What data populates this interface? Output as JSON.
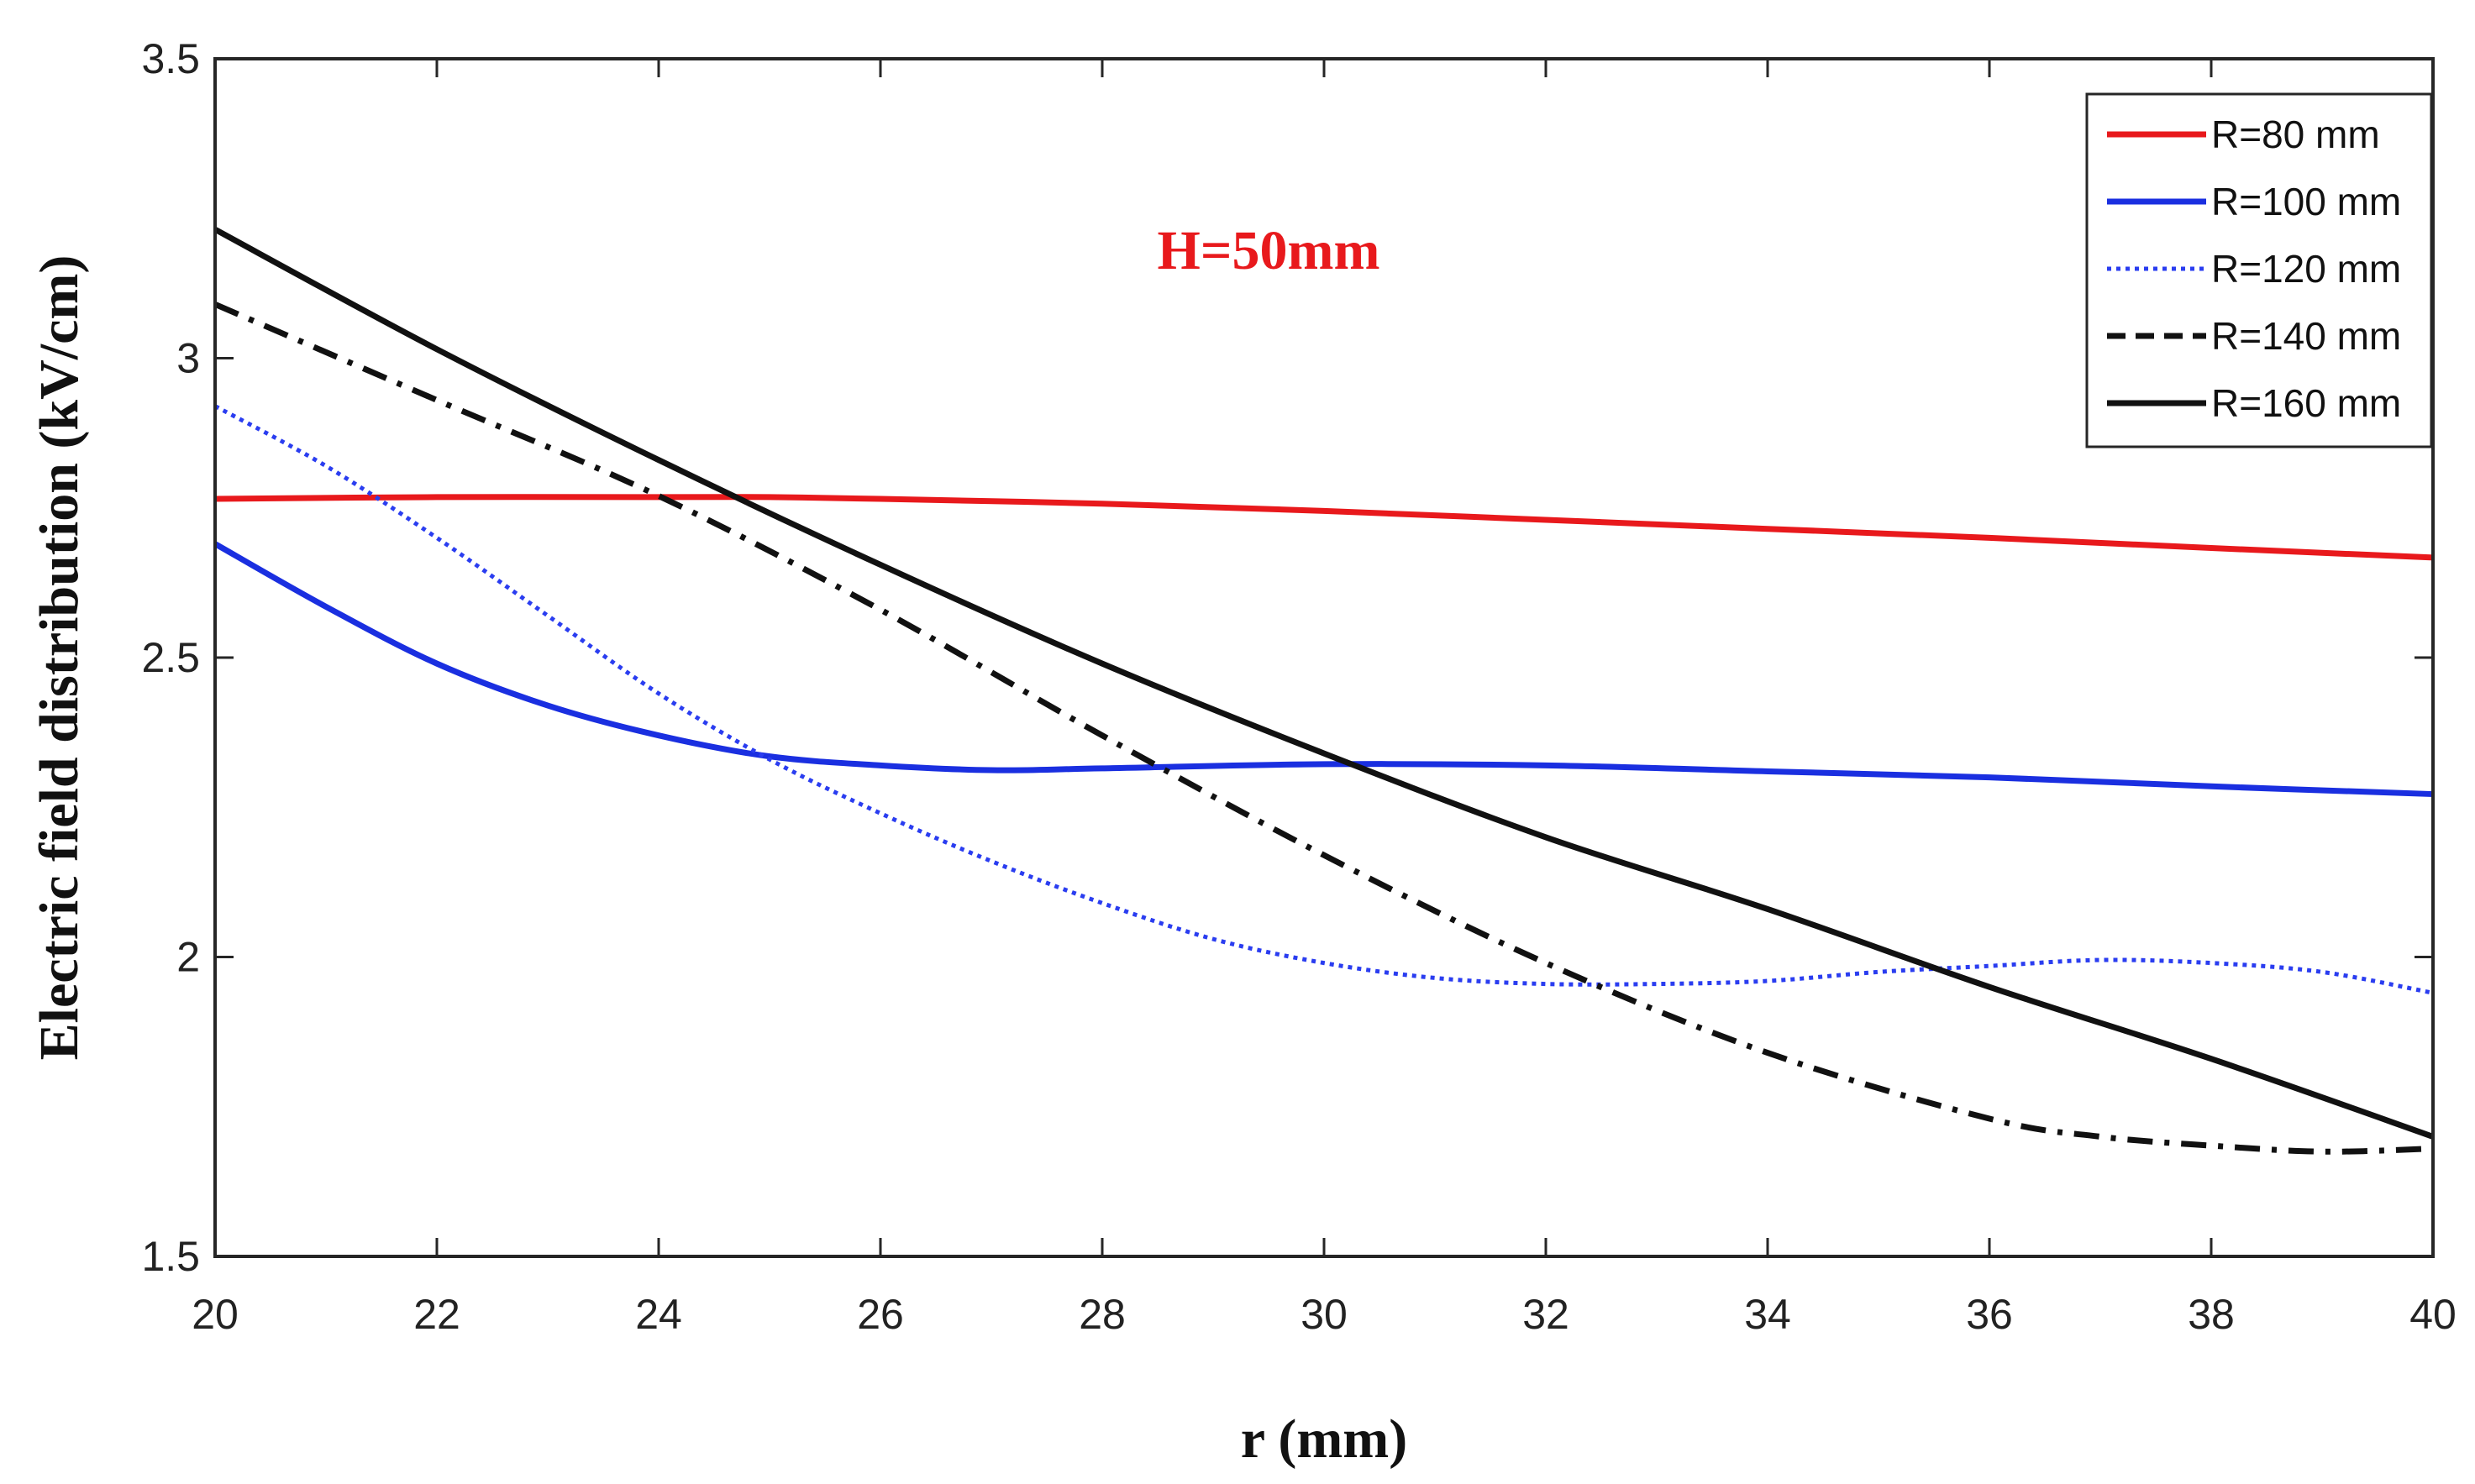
{
  "chart_data": {
    "type": "line",
    "title": "",
    "xlabel": "r (mm)",
    "ylabel": "Electric field distribution (kV/cm)",
    "xlim": [
      20,
      40
    ],
    "ylim": [
      1.5,
      3.5
    ],
    "xticks": [
      20,
      22,
      24,
      26,
      28,
      30,
      32,
      34,
      36,
      38,
      40
    ],
    "yticks": [
      1.5,
      2,
      2.5,
      3,
      3.5
    ],
    "xtick_labels": [
      "20",
      "22",
      "24",
      "26",
      "28",
      "30",
      "32",
      "34",
      "36",
      "38",
      "40"
    ],
    "ytick_labels": [
      "1.5",
      "2",
      "2.5",
      "3",
      "3.5"
    ],
    "grid": false,
    "legend_position": "top-right",
    "annotation": {
      "text": "H=50mm",
      "x": 29.5,
      "y": 3.18,
      "color": "#e8191c"
    },
    "series": [
      {
        "name": "R=80 mm",
        "color": "#e8191c",
        "style": "solid",
        "x": [
          20,
          22,
          24,
          25,
          26,
          28,
          30,
          32,
          34,
          36,
          38,
          40
        ],
        "y": [
          2.765,
          2.768,
          2.768,
          2.768,
          2.765,
          2.757,
          2.745,
          2.73,
          2.715,
          2.7,
          2.683,
          2.667
        ]
      },
      {
        "name": "R=100 mm",
        "color": "#1a2fe0",
        "style": "solid",
        "x": [
          20,
          21,
          22,
          23,
          24,
          25,
          26,
          27,
          28,
          30,
          32,
          34,
          36,
          38,
          40
        ],
        "y": [
          2.69,
          2.585,
          2.49,
          2.42,
          2.37,
          2.335,
          2.32,
          2.312,
          2.315,
          2.322,
          2.32,
          2.31,
          2.3,
          2.285,
          2.272
        ]
      },
      {
        "name": "R=120 mm",
        "color": "#2a3df0",
        "style": "dotted",
        "x": [
          20,
          21,
          22,
          23,
          24,
          25,
          26,
          27,
          28,
          29,
          30,
          31,
          32,
          33,
          34,
          35,
          36,
          37,
          38,
          39,
          40
        ],
        "y": [
          2.92,
          2.82,
          2.7,
          2.57,
          2.44,
          2.33,
          2.24,
          2.16,
          2.09,
          2.03,
          1.99,
          1.965,
          1.955,
          1.955,
          1.96,
          1.975,
          1.985,
          1.995,
          1.99,
          1.975,
          1.94
        ]
      },
      {
        "name": "R=140 mm",
        "color": "#111111",
        "style": "dashdot",
        "x": [
          20,
          22,
          24,
          26,
          28,
          30,
          32,
          34,
          36,
          37,
          38,
          39,
          40
        ],
        "y": [
          3.09,
          2.93,
          2.77,
          2.58,
          2.37,
          2.17,
          1.99,
          1.84,
          1.73,
          1.7,
          1.685,
          1.675,
          1.68
        ]
      },
      {
        "name": "R=160 mm",
        "color": "#111111",
        "style": "solid",
        "x": [
          20,
          22,
          24,
          26,
          28,
          30,
          32,
          34,
          36,
          38,
          40
        ],
        "y": [
          3.215,
          3.015,
          2.83,
          2.655,
          2.49,
          2.34,
          2.2,
          2.08,
          1.95,
          1.83,
          1.7
        ]
      }
    ]
  }
}
